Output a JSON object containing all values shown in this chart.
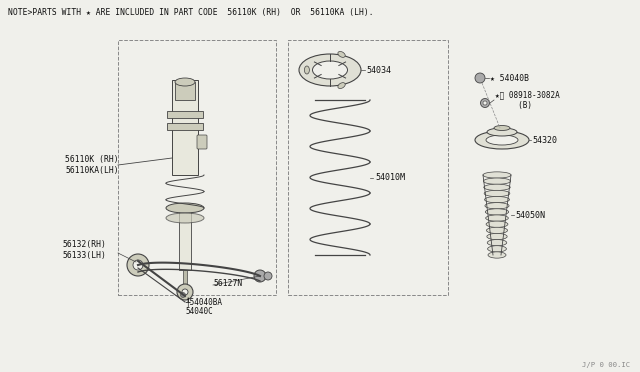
{
  "bg_color": "#f0f0eb",
  "line_color": "#444444",
  "dashed_box_color": "#888888",
  "note_text": "NOTE>PARTS WITH ★ ARE INCLUDED IN PART CODE  56110K (RH)  OR  56110KA (LH).",
  "watermark": "J/P 0 00.IC",
  "label_56110K": "56110K (RH)\n56110KA(LH)",
  "label_56127N": "56127N",
  "label_56132": "56132(RH)\n56133(LH)",
  "label_54040BA": "╀54040BA",
  "label_54040C": "54040C",
  "label_54034": "54034",
  "label_54010M": "54010M",
  "label_54040B": "★ 54040B",
  "label_08918": "★Ⓝ 08918-3082A\n     (B)",
  "label_54320": "54320",
  "label_54050N": "54050N"
}
